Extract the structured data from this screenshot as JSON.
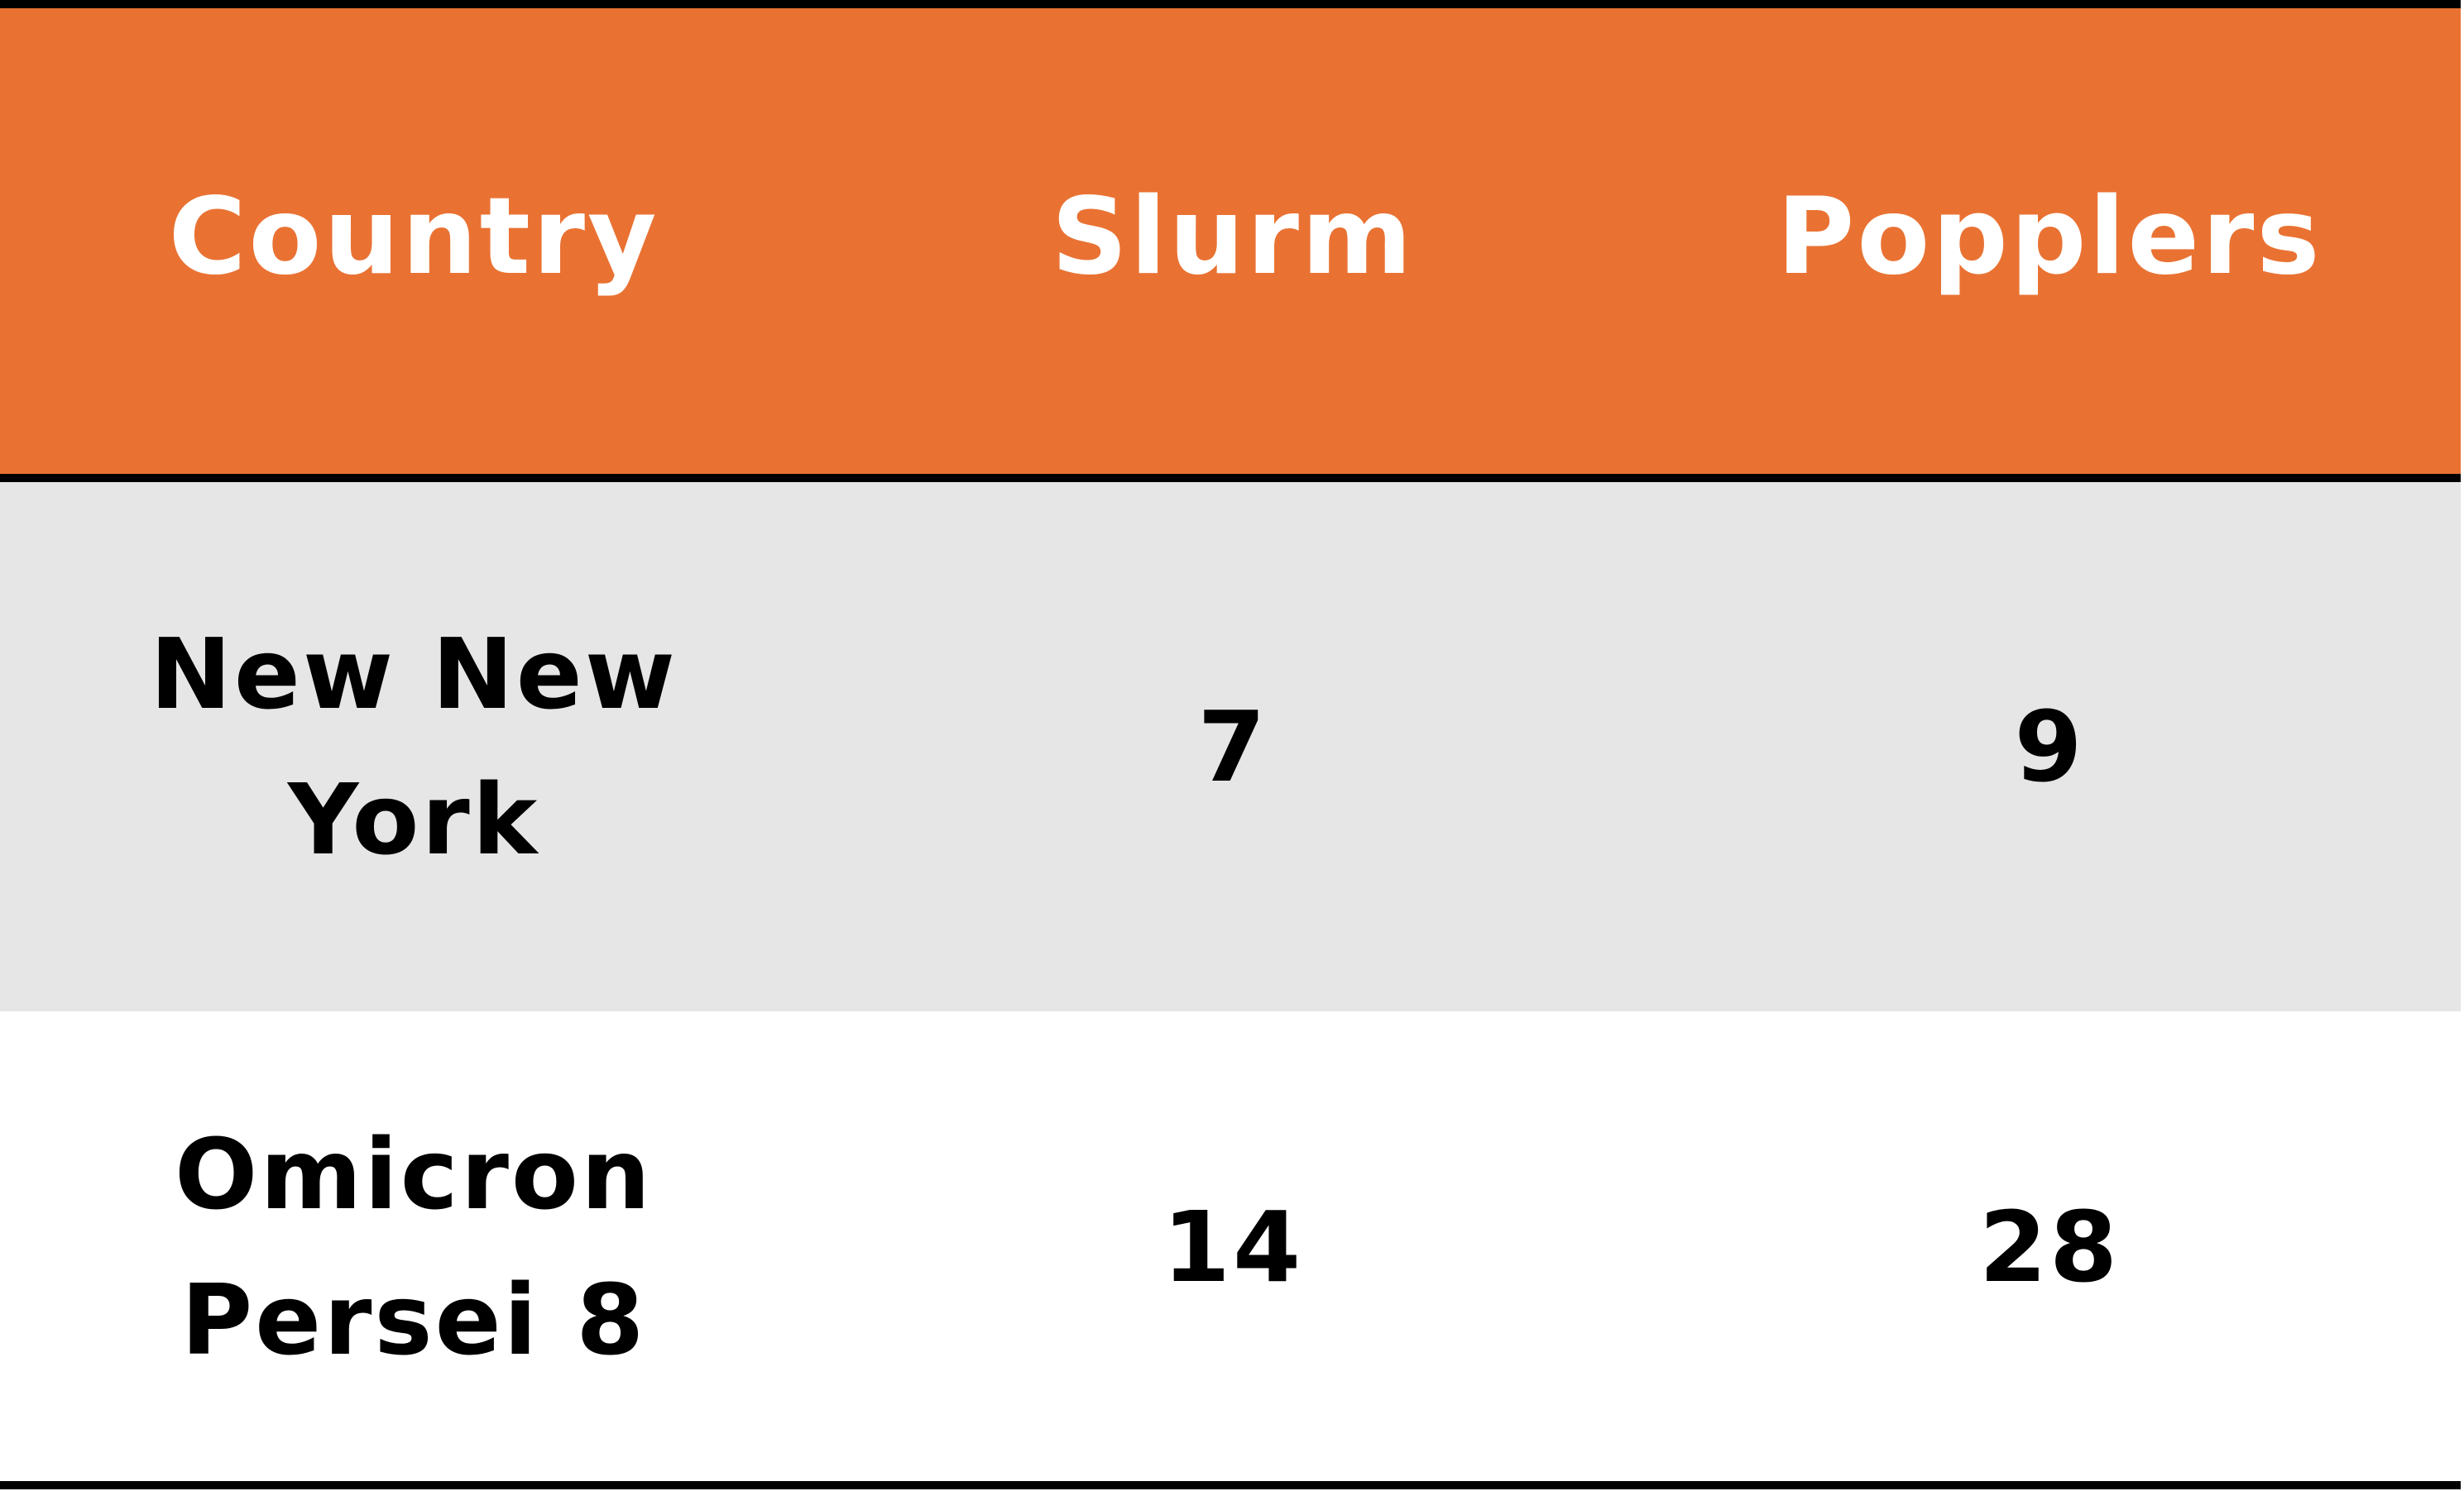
{
  "table": {
    "columns": [
      "Country",
      "Slurm",
      "Popplers"
    ],
    "rows": [
      [
        "New New York",
        "7",
        "9"
      ],
      [
        "Omicron Persei 8",
        "14",
        "28"
      ]
    ]
  },
  "colors": {
    "header_background": "#e97233",
    "header_text": "#ffffff",
    "row_1_background": "#e6e6e6",
    "row_2_background": "#ffffff",
    "rule": "#000000"
  }
}
